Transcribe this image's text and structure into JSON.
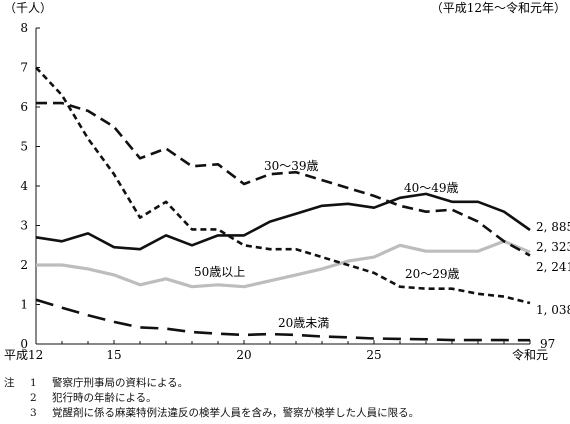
{
  "chart_data": {
    "type": "line",
    "unit_label": "（千人）",
    "period_label": "（平成12年～令和元年）",
    "x_ticks": [
      "平成12",
      "15",
      "20",
      "25",
      "令和元"
    ],
    "ylim": [
      0,
      8
    ],
    "y_ticks": [
      "0",
      "1",
      "2",
      "3",
      "4",
      "5",
      "6",
      "7",
      "8"
    ],
    "x": [
      "平成12",
      "13",
      "14",
      "15",
      "16",
      "17",
      "18",
      "19",
      "20",
      "21",
      "22",
      "23",
      "24",
      "25",
      "26",
      "27",
      "28",
      "29",
      "30",
      "令和元"
    ],
    "series": [
      {
        "name": "20歳未満",
        "style": "long-dash",
        "color": "#111111",
        "values": [
          1.12,
          0.92,
          0.73,
          0.56,
          0.42,
          0.39,
          0.3,
          0.26,
          0.23,
          0.25,
          0.23,
          0.19,
          0.17,
          0.14,
          0.13,
          0.12,
          0.1,
          0.1,
          0.1,
          0.097
        ],
        "end_label": "97"
      },
      {
        "name": "20～29歳",
        "style": "short-dash",
        "color": "#111111",
        "values": [
          7.0,
          6.3,
          5.2,
          4.3,
          3.2,
          3.6,
          2.9,
          2.9,
          2.5,
          2.4,
          2.4,
          2.2,
          2.0,
          1.8,
          1.45,
          1.4,
          1.4,
          1.27,
          1.2,
          1.038
        ],
        "end_label": "1, 038"
      },
      {
        "name": "30～39歳",
        "style": "dash",
        "color": "#111111",
        "values": [
          6.1,
          6.1,
          5.9,
          5.5,
          4.7,
          4.95,
          4.5,
          4.55,
          4.05,
          4.3,
          4.35,
          4.15,
          3.95,
          3.75,
          3.5,
          3.35,
          3.4,
          3.1,
          2.6,
          2.241
        ],
        "end_label": "2, 241"
      },
      {
        "name": "40～49歳",
        "style": "solid",
        "color": "#111111",
        "values": [
          2.7,
          2.6,
          2.8,
          2.45,
          2.4,
          2.75,
          2.5,
          2.75,
          2.75,
          3.1,
          3.3,
          3.5,
          3.55,
          3.45,
          3.7,
          3.8,
          3.6,
          3.6,
          3.35,
          2.885
        ],
        "end_label": "2, 885"
      },
      {
        "name": "50歳以上",
        "style": "solid",
        "color": "#bdbdbd",
        "values": [
          2.0,
          2.0,
          1.9,
          1.75,
          1.5,
          1.65,
          1.45,
          1.5,
          1.45,
          1.6,
          1.75,
          1.9,
          2.1,
          2.2,
          2.5,
          2.35,
          2.35,
          2.35,
          2.6,
          2.323
        ],
        "end_label": "2, 323"
      }
    ],
    "grid": false
  },
  "notes": {
    "prefix": "注",
    "items": [
      {
        "num": "1",
        "text": "警察庁刑事局の資料による。"
      },
      {
        "num": "2",
        "text": "犯行時の年齢による。"
      },
      {
        "num": "3",
        "text": "覚醒剤に係る麻薬特例法違反の検挙人員を含み，警察が検挙した人員に限る。"
      }
    ]
  }
}
